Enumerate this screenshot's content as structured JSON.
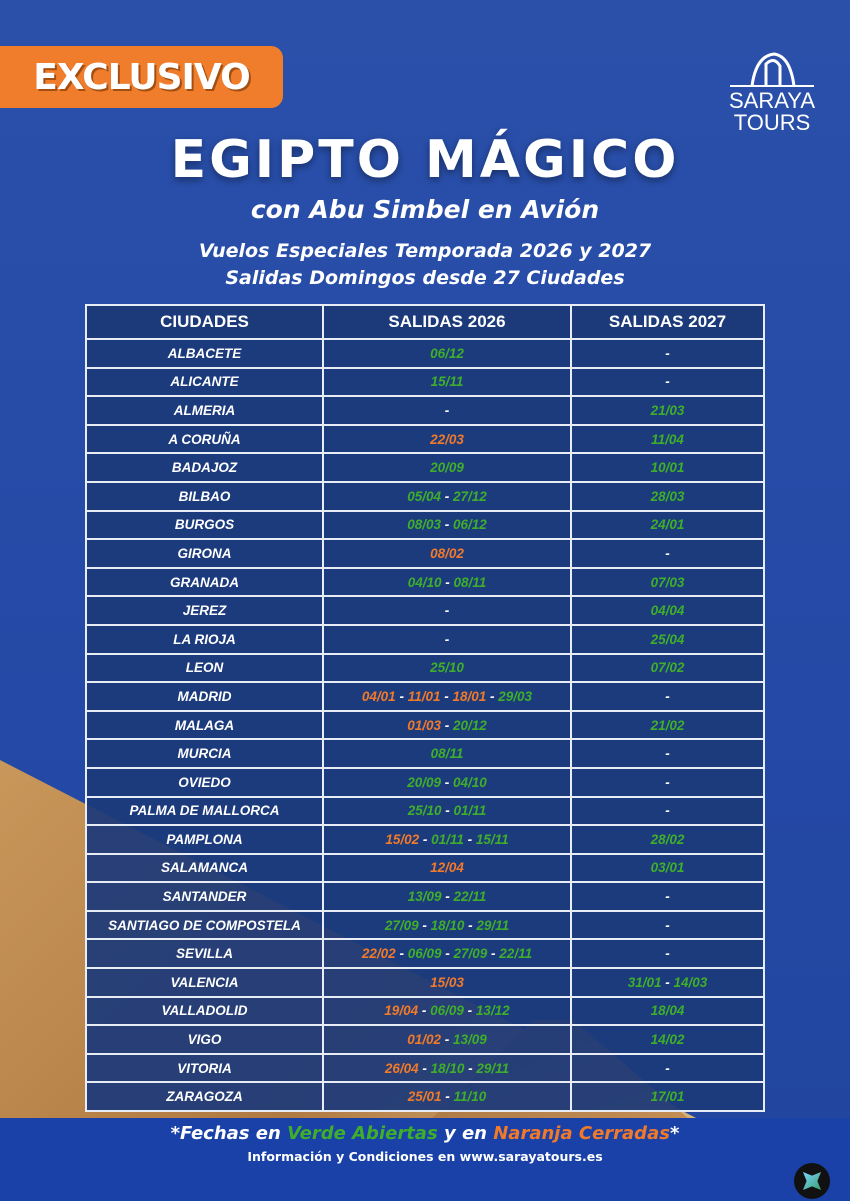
{
  "badge": "EXCLUSIVO",
  "logo": {
    "line1": "SARAYA",
    "line2": "TOURS"
  },
  "title": "EGIPTO MÁGICO",
  "subtitle": "con Abu Simbel en Avión",
  "tagline1": "Vuelos Especiales Temporada 2026 y 2027",
  "tagline2": "Salidas Domingos desde 27 Ciudades",
  "colors": {
    "open": "#3fae2a",
    "closed": "#f07a2a",
    "badge": "#ef7d2c",
    "table": "#1c3a7a"
  },
  "table": {
    "headers": [
      "CIUDADES",
      "SALIDAS 2026",
      "SALIDAS 2027"
    ],
    "rows": [
      {
        "city": "ALBACETE",
        "s2026": [
          [
            "06/12",
            "open"
          ]
        ],
        "s2027": []
      },
      {
        "city": "ALICANTE",
        "s2026": [
          [
            "15/11",
            "open"
          ]
        ],
        "s2027": []
      },
      {
        "city": "ALMERIA",
        "s2026": [],
        "s2027": [
          [
            "21/03",
            "open"
          ]
        ]
      },
      {
        "city": "A CORUÑA",
        "s2026": [
          [
            "22/03",
            "closed"
          ]
        ],
        "s2027": [
          [
            "11/04",
            "open"
          ]
        ]
      },
      {
        "city": "BADAJOZ",
        "s2026": [
          [
            "20/09",
            "open"
          ]
        ],
        "s2027": [
          [
            "10/01",
            "open"
          ]
        ]
      },
      {
        "city": "BILBAO",
        "s2026": [
          [
            "05/04",
            "open"
          ],
          [
            "27/12",
            "open"
          ]
        ],
        "s2027": [
          [
            "28/03",
            "open"
          ]
        ]
      },
      {
        "city": "BURGOS",
        "s2026": [
          [
            "08/03",
            "open"
          ],
          [
            "06/12",
            "open"
          ]
        ],
        "s2027": [
          [
            "24/01",
            "open"
          ]
        ]
      },
      {
        "city": "GIRONA",
        "s2026": [
          [
            "08/02",
            "closed"
          ]
        ],
        "s2027": []
      },
      {
        "city": "GRANADA",
        "s2026": [
          [
            "04/10",
            "open"
          ],
          [
            "08/11",
            "open"
          ]
        ],
        "s2027": [
          [
            "07/03",
            "open"
          ]
        ]
      },
      {
        "city": "JEREZ",
        "s2026": [],
        "s2027": [
          [
            "04/04",
            "open"
          ]
        ]
      },
      {
        "city": "LA RIOJA",
        "s2026": [],
        "s2027": [
          [
            "25/04",
            "open"
          ]
        ]
      },
      {
        "city": "LEON",
        "s2026": [
          [
            "25/10",
            "open"
          ]
        ],
        "s2027": [
          [
            "07/02",
            "open"
          ]
        ]
      },
      {
        "city": "MADRID",
        "s2026": [
          [
            "04/01",
            "closed"
          ],
          [
            "11/01",
            "closed"
          ],
          [
            "18/01",
            "closed"
          ],
          [
            "29/03",
            "open"
          ]
        ],
        "s2027": []
      },
      {
        "city": "MALAGA",
        "s2026": [
          [
            "01/03",
            "closed"
          ],
          [
            "20/12",
            "open"
          ]
        ],
        "s2027": [
          [
            "21/02",
            "open"
          ]
        ]
      },
      {
        "city": "MURCIA",
        "s2026": [
          [
            "08/11",
            "open"
          ]
        ],
        "s2027": []
      },
      {
        "city": "OVIEDO",
        "s2026": [
          [
            "20/09",
            "open"
          ],
          [
            "04/10",
            "open"
          ]
        ],
        "s2027": []
      },
      {
        "city": "PALMA DE  MALLORCA",
        "s2026": [
          [
            "25/10",
            "open"
          ],
          [
            "01/11",
            "open"
          ]
        ],
        "s2027": []
      },
      {
        "city": "PAMPLONA",
        "s2026": [
          [
            "15/02",
            "closed"
          ],
          [
            "01/11",
            "open"
          ],
          [
            "15/11",
            "open"
          ]
        ],
        "s2027": [
          [
            "28/02",
            "open"
          ]
        ]
      },
      {
        "city": "SALAMANCA",
        "s2026": [
          [
            "12/04",
            "closed"
          ]
        ],
        "s2027": [
          [
            "03/01",
            "open"
          ]
        ]
      },
      {
        "city": "SANTANDER",
        "s2026": [
          [
            "13/09",
            "open"
          ],
          [
            "22/11",
            "open"
          ]
        ],
        "s2027": []
      },
      {
        "city": "SANTIAGO DE COMPOSTELA",
        "s2026": [
          [
            "27/09",
            "open"
          ],
          [
            "18/10",
            "open"
          ],
          [
            "29/11",
            "open"
          ]
        ],
        "s2027": []
      },
      {
        "city": "SEVILLA",
        "s2026": [
          [
            "22/02",
            "closed"
          ],
          [
            "06/09",
            "open"
          ],
          [
            "27/09",
            "open"
          ],
          [
            "22/11",
            "open"
          ]
        ],
        "s2027": []
      },
      {
        "city": "VALENCIA",
        "s2026": [
          [
            "15/03",
            "closed"
          ]
        ],
        "s2027": [
          [
            "31/01",
            "open"
          ],
          [
            "14/03",
            "open"
          ]
        ]
      },
      {
        "city": "VALLADOLID",
        "s2026": [
          [
            "19/04",
            "closed"
          ],
          [
            "06/09",
            "open"
          ],
          [
            "13/12",
            "open"
          ]
        ],
        "s2027": [
          [
            "18/04",
            "open"
          ]
        ]
      },
      {
        "city": "VIGO",
        "s2026": [
          [
            "01/02",
            "closed"
          ],
          [
            "13/09",
            "open"
          ]
        ],
        "s2027": [
          [
            "14/02",
            "open"
          ]
        ]
      },
      {
        "city": "VITORIA",
        "s2026": [
          [
            "26/04",
            "closed"
          ],
          [
            "18/10",
            "open"
          ],
          [
            "29/11",
            "open"
          ]
        ],
        "s2027": []
      },
      {
        "city": "ZARAGOZA",
        "s2026": [
          [
            "25/01",
            "closed"
          ],
          [
            "11/10",
            "open"
          ]
        ],
        "s2027": [
          [
            "17/01",
            "open"
          ]
        ]
      }
    ],
    "empty": "-",
    "separator": " - "
  },
  "footer": {
    "note_pre": "*Fechas en ",
    "note_open": "Verde Abiertas",
    "note_mid": " y en ",
    "note_closed": "Naranja Cerradas",
    "note_post": "*",
    "info": "Información y Condiciones en www.sarayatours.es"
  }
}
